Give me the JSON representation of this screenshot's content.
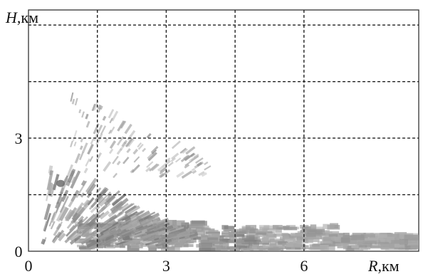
{
  "chart_data": {
    "type": "heatmap",
    "title": "",
    "ylabel": {
      "var": "H",
      "unit": ",км"
    },
    "xlabel": {
      "var": "R",
      "unit": ",км"
    },
    "xlim": [
      0,
      8.5
    ],
    "ylim": [
      0,
      6.4
    ],
    "x_ticks": [
      {
        "value": 0,
        "label": "0"
      },
      {
        "value": 3,
        "label": "3"
      },
      {
        "value": 6,
        "label": "6"
      }
    ],
    "y_ticks": [
      {
        "value": 0,
        "label": "0"
      },
      {
        "value": 3,
        "label": "3"
      }
    ],
    "grid": {
      "x": [
        1.5,
        3,
        4.5,
        6
      ],
      "y": [
        1.5,
        3,
        4.5,
        6
      ]
    },
    "colors": {
      "echo_light": "#bcbcbc",
      "echo_mid": "#9a9a9a",
      "echo_dark": "#6e6e6e"
    },
    "echo_regions": [
      {
        "name": "surface-layer",
        "r": [
          1.0,
          8.5
        ],
        "h": [
          0.0,
          0.7
        ],
        "intensity": 0.65
      },
      {
        "name": "near-field-fan",
        "r": [
          0.3,
          3.5
        ],
        "h": [
          0.2,
          2.2
        ],
        "intensity": 0.7
      },
      {
        "name": "upper-sparse",
        "r": [
          0.9,
          3.9
        ],
        "h": [
          2.0,
          4.2
        ],
        "intensity": 0.5
      }
    ],
    "dark_spot": {
      "r": 0.7,
      "h": 1.8
    }
  }
}
